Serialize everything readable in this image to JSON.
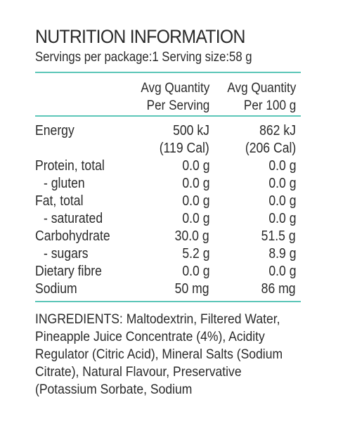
{
  "panel": {
    "title": "NUTRITION INFORMATION",
    "servings_line": "Servings per package:1 Serving size:58 g"
  },
  "columns": {
    "per_serving_line1": "Avg Quantity",
    "per_serving_line2": "Per Serving",
    "per_100g_line1": "Avg Quantity",
    "per_100g_line2": "Per 100 g"
  },
  "rows": [
    {
      "name": "Energy",
      "per_serving": "500 kJ",
      "per_100g": "862 kJ"
    },
    {
      "name": "",
      "per_serving": "(119 Cal)",
      "per_100g": "(206 Cal)"
    },
    {
      "name": "Protein, total",
      "per_serving": "0.0 g",
      "per_100g": "0.0 g"
    },
    {
      "name": "- gluten",
      "per_serving": "0.0 g",
      "per_100g": "0.0 g"
    },
    {
      "name": "Fat, total",
      "per_serving": "0.0 g",
      "per_100g": "0.0 g"
    },
    {
      "name": "- saturated",
      "per_serving": "0.0 g",
      "per_100g": "0.0 g"
    },
    {
      "name": "Carbohydrate",
      "per_serving": "30.0 g",
      "per_100g": "51.5 g"
    },
    {
      "name": "- sugars",
      "per_serving": "5.2 g",
      "per_100g": "8.9 g"
    },
    {
      "name": "Dietary fibre",
      "per_serving": "0.0 g",
      "per_100g": "0.0 g"
    },
    {
      "name": "Sodium",
      "per_serving": "50 mg",
      "per_100g": "86 mg"
    }
  ],
  "ingredients": "INGREDIENTS: Maltodextrin, Filtered Water, Pineapple Juice Concentrate (4%), Acidity Regulator (Citric Acid), Mineral Salts (Sodium Citrate), Natural Flavour, Preservative (Potassium Sorbate, Sodium",
  "colors": {
    "rule": "#5cc6b8",
    "text": "#2a2a2a"
  }
}
